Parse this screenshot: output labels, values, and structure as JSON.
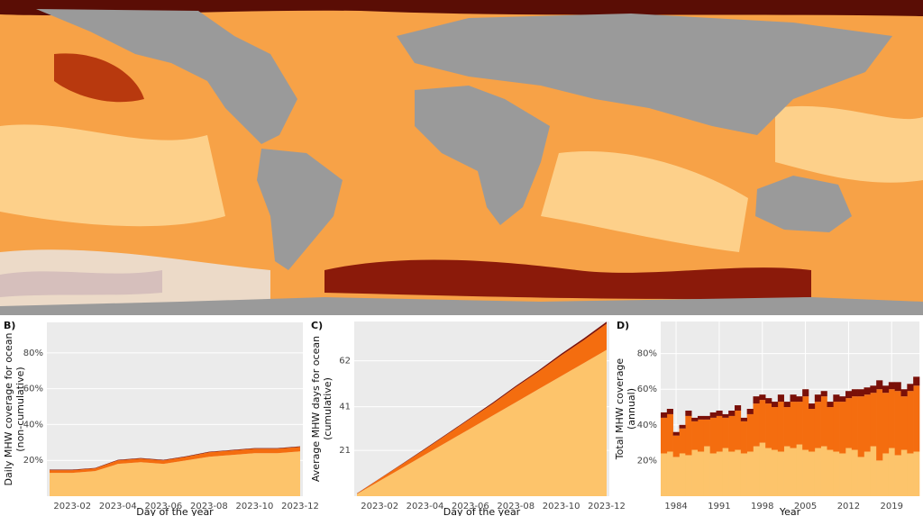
{
  "chart_data": [
    {
      "type": "area",
      "panel": "B)",
      "ylabel": [
        "Daily MHW coverage for ocean",
        "(non-cumulative)"
      ],
      "xlabel": "Day of the year",
      "categories": [
        null,
        "2023-02",
        null,
        "2023-04",
        null,
        "2023-06",
        null,
        "2023-08",
        null,
        "2023-10",
        null,
        "2023-12"
      ],
      "series": [
        {
          "color": "#fdc46b",
          "values": [
            13,
            13,
            14,
            18,
            19,
            18,
            20,
            22,
            23,
            24,
            24,
            25
          ]
        },
        {
          "color": "#f46d0f",
          "values": [
            1.5,
            1.5,
            1.5,
            2,
            2,
            2,
            2,
            2.5,
            2.5,
            2.5,
            2.5,
            2.5
          ]
        },
        {
          "color": "#7a1008",
          "values": [
            0.3,
            0.3,
            0.3,
            0.3,
            0.3,
            0.3,
            0.3,
            0.3,
            0.3,
            0.3,
            0.3,
            0.3
          ]
        }
      ],
      "ylim": [
        0,
        97
      ],
      "yticks": [
        {
          "value": 20,
          "label": "20%"
        },
        {
          "value": 40,
          "label": "40%"
        },
        {
          "value": 60,
          "label": "60%"
        },
        {
          "value": 80,
          "label": "80%"
        }
      ],
      "grid": true
    },
    {
      "type": "area",
      "panel": "C)",
      "ylabel": [
        "Average MHW days for ocean",
        "(cumulative)"
      ],
      "xlabel": "Day of the year",
      "categories": [
        null,
        "2023-02",
        null,
        "2023-04",
        null,
        "2023-06",
        null,
        "2023-08",
        null,
        "2023-10",
        null,
        "2023-12"
      ],
      "series": [
        {
          "color": "#fdc46b",
          "values": [
            1,
            7,
            13,
            19,
            25,
            31,
            37,
            43,
            49,
            55,
            61,
            67
          ]
        },
        {
          "color": "#f46d0f",
          "values": [
            0.2,
            1,
            1.7,
            2.5,
            3.5,
            4.5,
            5.5,
            7,
            8,
            9.5,
            10.5,
            12
          ]
        },
        {
          "color": "#7a1008",
          "values": [
            0.1,
            0.1,
            0.2,
            0.3,
            0.3,
            0.4,
            0.5,
            0.5,
            0.6,
            0.7,
            0.8,
            0.9
          ]
        }
      ],
      "ylim": [
        0,
        80
      ],
      "yticks": [
        21,
        41,
        62
      ],
      "grid": true
    },
    {
      "type": "bar",
      "panel": "D)",
      "ylabel": [
        "Total MHW coverage",
        "(annual)"
      ],
      "xlabel": "Year",
      "x": [
        1982,
        1983,
        1984,
        1985,
        1986,
        1987,
        1988,
        1989,
        1990,
        1991,
        1992,
        1993,
        1994,
        1995,
        1996,
        1997,
        1998,
        1999,
        2000,
        2001,
        2002,
        2003,
        2004,
        2005,
        2006,
        2007,
        2008,
        2009,
        2010,
        2011,
        2012,
        2013,
        2014,
        2015,
        2016,
        2017,
        2018,
        2019,
        2020,
        2021,
        2022,
        2023
      ],
      "series": [
        {
          "color": "#fdc46b",
          "values": [
            24,
            25,
            22,
            24,
            23,
            26,
            25,
            28,
            24,
            25,
            27,
            25,
            26,
            24,
            25,
            28,
            30,
            27,
            26,
            25,
            28,
            27,
            29,
            26,
            25,
            27,
            28,
            26,
            25,
            24,
            27,
            26,
            22,
            25,
            28,
            20,
            24,
            27,
            23,
            26,
            24,
            25
          ]
        },
        {
          "color": "#f46d0f",
          "values": [
            20,
            21,
            12,
            14,
            22,
            16,
            18,
            15,
            20,
            20,
            17,
            20,
            22,
            18,
            21,
            24,
            24,
            25,
            24,
            28,
            22,
            26,
            24,
            30,
            24,
            26,
            28,
            24,
            28,
            29,
            28,
            30,
            34,
            32,
            30,
            40,
            34,
            33,
            36,
            30,
            35,
            37
          ]
        },
        {
          "color": "#7a1008",
          "values": [
            3,
            3,
            2,
            2,
            3,
            2,
            2,
            2,
            3,
            3,
            2,
            3,
            3,
            2,
            3,
            4,
            3,
            3,
            3,
            4,
            3,
            4,
            3,
            4,
            3,
            4,
            3,
            3,
            4,
            3,
            4,
            4,
            4,
            4,
            4,
            5,
            4,
            4,
            5,
            4,
            4,
            5
          ]
        }
      ],
      "xlim": [
        1981.5,
        2023.5
      ],
      "xticks": [
        1984,
        1991,
        1998,
        2005,
        2012,
        2019
      ],
      "ylim": [
        0,
        98
      ],
      "yticks": [
        {
          "value": 20,
          "label": "20%"
        },
        {
          "value": 40,
          "label": "40%"
        },
        {
          "value": 60,
          "label": "60%"
        },
        {
          "value": 80,
          "label": "80%"
        }
      ],
      "grid": true
    }
  ]
}
